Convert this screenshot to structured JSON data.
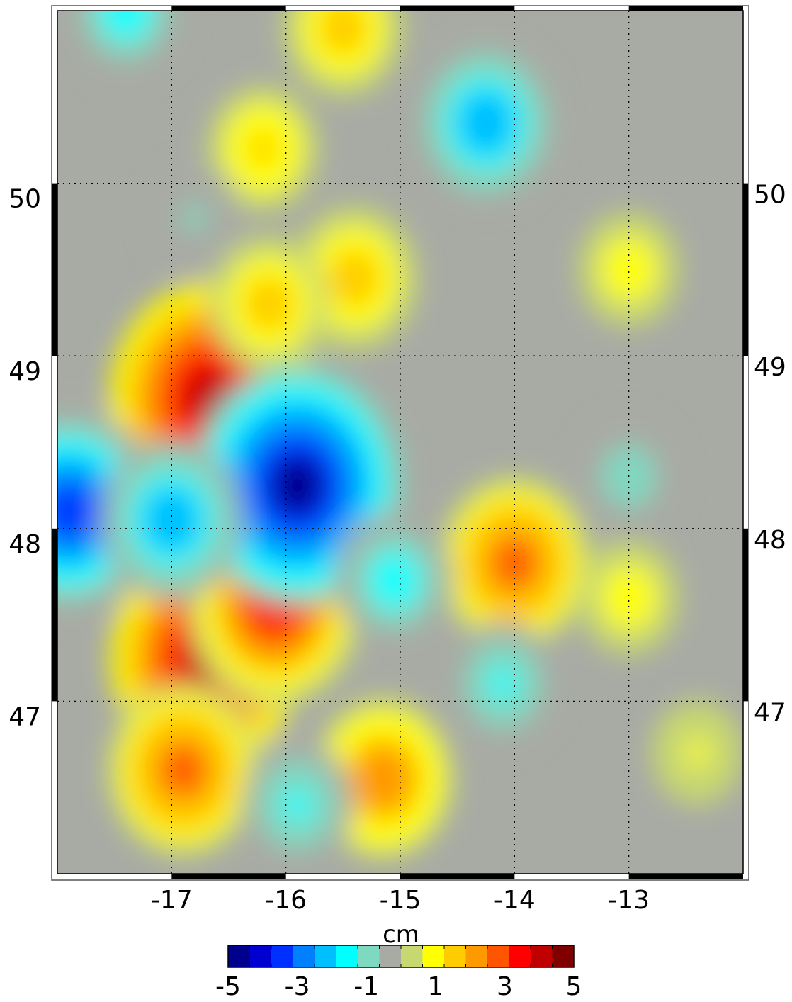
{
  "map": {
    "x_ticks": [
      "-17",
      "-16",
      "-15",
      "-14",
      "-13"
    ],
    "y_ticks": [
      "50",
      "49",
      "48",
      "47"
    ],
    "lon_range": [
      -18,
      -12
    ],
    "lat_range": [
      46,
      51
    ],
    "grid_lons": [
      -17,
      -16,
      -15,
      -14,
      -13
    ],
    "grid_lats": [
      50,
      49,
      48,
      47
    ],
    "background_color": "#a8aba4",
    "features": [
      {
        "kind": "high",
        "lon": -16.65,
        "lat": 48.75,
        "value": 4.2
      },
      {
        "kind": "high",
        "lon": -16.7,
        "lat": 47.25,
        "value": 3.8
      },
      {
        "kind": "high",
        "lon": -16.9,
        "lat": 46.6,
        "value": 2.6
      },
      {
        "kind": "high",
        "lon": -16.1,
        "lat": 47.55,
        "value": 3.3
      },
      {
        "kind": "high",
        "lon": -15.15,
        "lat": 46.55,
        "value": 2.3
      },
      {
        "kind": "high",
        "lon": -14.0,
        "lat": 47.8,
        "value": 2.6
      },
      {
        "kind": "high",
        "lon": -15.4,
        "lat": 49.45,
        "value": 1.8
      },
      {
        "kind": "high",
        "lon": -16.15,
        "lat": 49.3,
        "value": 1.6
      },
      {
        "kind": "high",
        "lon": -15.5,
        "lat": 50.9,
        "value": 1.6
      },
      {
        "kind": "high",
        "lon": -16.2,
        "lat": 50.2,
        "value": 1.3
      },
      {
        "kind": "high",
        "lon": -13.0,
        "lat": 49.5,
        "value": 1.0
      },
      {
        "kind": "high",
        "lon": -13.0,
        "lat": 47.6,
        "value": 1.0
      },
      {
        "kind": "high",
        "lon": -12.4,
        "lat": 46.7,
        "value": 0.7
      },
      {
        "kind": "low",
        "lon": -15.9,
        "lat": 48.25,
        "value": -4.4
      },
      {
        "kind": "low",
        "lon": -17.9,
        "lat": 48.1,
        "value": -3.6
      },
      {
        "kind": "low",
        "lon": -17.0,
        "lat": 48.05,
        "value": -2.3
      },
      {
        "kind": "low",
        "lon": -14.25,
        "lat": 50.35,
        "value": -2.3
      },
      {
        "kind": "low",
        "lon": -15.05,
        "lat": 47.7,
        "value": -1.6
      },
      {
        "kind": "low",
        "lon": -14.1,
        "lat": 47.1,
        "value": -1.3
      },
      {
        "kind": "low",
        "lon": -17.4,
        "lat": 51.0,
        "value": -1.6
      },
      {
        "kind": "low",
        "lon": -15.9,
        "lat": 46.4,
        "value": -1.4
      },
      {
        "kind": "low",
        "lon": -13.0,
        "lat": 48.3,
        "value": -1.0
      },
      {
        "kind": "low",
        "lon": -16.8,
        "lat": 49.8,
        "value": -0.7
      }
    ]
  },
  "colorbar": {
    "unit": "cm",
    "tick_labels": [
      "-5",
      "-3",
      "-1",
      "1",
      "3",
      "5"
    ],
    "range": [
      -5,
      5
    ],
    "colors": [
      "#00008f",
      "#0000d0",
      "#0030ff",
      "#0080ff",
      "#00bfff",
      "#00ffff",
      "#7fd8c0",
      "#a8aba4",
      "#c8d870",
      "#ffff00",
      "#ffcc00",
      "#ff9900",
      "#ff5500",
      "#ff0000",
      "#c00000",
      "#800000"
    ]
  }
}
